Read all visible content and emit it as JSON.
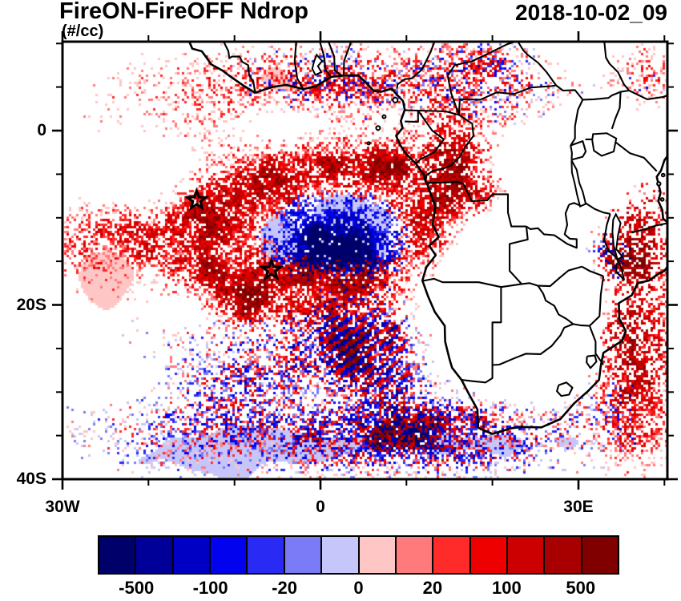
{
  "header": {
    "title": "FireON-FireOFF Ndrop",
    "units": "(#/cc)",
    "datetime": "2018-10-02_09"
  },
  "chart_data": {
    "type": "heatmap",
    "title": "FireON-FireOFF Ndrop",
    "units": "#/cc",
    "datetime": "2018-10-02_09",
    "description": "Difference in cloud droplet number concentration (FireON minus FireOFF) over the southeast Atlantic and southern Africa, shown as a red/blue diverging pixel field over a coastline map.",
    "extent": {
      "lon_min": -30,
      "lon_max": 40.3,
      "lat_min": -40.2,
      "lat_max": 10.2
    },
    "x_ticks": [
      {
        "lon": -30,
        "label": "30W"
      },
      {
        "lon": 0,
        "label": "0"
      },
      {
        "lon": 30,
        "label": "30E"
      }
    ],
    "y_ticks": [
      {
        "lat": 0,
        "label": "0"
      },
      {
        "lat": -20,
        "label": "20S"
      },
      {
        "lat": -40,
        "label": "40S"
      }
    ],
    "minor_tick_step_lon": 10,
    "minor_tick_step_lat": 5,
    "grid": false,
    "line_color": "#000000",
    "background_color": "#ffffff",
    "colorbar": {
      "orientation": "horizontal",
      "levels": [
        -500,
        -200,
        -100,
        -50,
        -20,
        -10,
        0,
        10,
        20,
        50,
        100,
        200,
        500
      ],
      "labels": [
        "-500",
        "-100",
        "-20",
        "0",
        "20",
        "100",
        "500"
      ],
      "labeled_level_indices": [
        0,
        2,
        4,
        6,
        8,
        10,
        12
      ],
      "colors": [
        "#00006B",
        "#000099",
        "#0000C4",
        "#0202EE",
        "#2A2AF5",
        "#7B7BF7",
        "#C6C6FA",
        "#FFC6C6",
        "#FF7B7B",
        "#FF2A2A",
        "#EE0000",
        "#CC0000",
        "#A80000",
        "#800000"
      ]
    },
    "markers": [
      {
        "name": "ascension-island-star",
        "lon": -14.4,
        "lat": -8.0
      },
      {
        "name": "st-helena-star",
        "lon": -5.7,
        "lat": -16.0
      }
    ],
    "field_summary": "Positive (red) differences dominate the biomass-burning outflow over the SE Atlantic and central/eastern Africa; a blue negative lens sits offshore of Angola near 0E,12S; mixed red/blue small-scale noise with diagonal wave bands covers the Southern Ocean sector south of 20S.",
    "field_regions": [
      {
        "lon": -13.1,
        "lat": 2.1,
        "rlon": 18.5,
        "rlat": 8.3,
        "amp": 0.38,
        "sign": 0.75
      },
      {
        "lon": -23.3,
        "lat": -12.6,
        "rlon": 10.7,
        "rlat": 5.5,
        "amp": 0.75,
        "sign": 0.95
      },
      {
        "lon": -9.4,
        "lat": -7.1,
        "rlon": 7.0,
        "rlat": 4.1,
        "amp": 0.85,
        "sign": 1
      },
      {
        "lon": -13.6,
        "lat": -13.1,
        "rlon": 5.1,
        "rlat": 6.9,
        "amp": 0.8,
        "sign": 1
      },
      {
        "lon": -8.5,
        "lat": -18.6,
        "rlon": 6.0,
        "rlat": 4.1,
        "amp": 0.8,
        "sign": 1
      },
      {
        "lon": -1.1,
        "lat": -3.9,
        "rlon": 8.8,
        "rlat": 3.5,
        "amp": 0.85,
        "sign": 1
      },
      {
        "lon": 7.3,
        "lat": -3.9,
        "rlon": 6.0,
        "rlat": 3.2,
        "amp": 0.75,
        "sign": 1
      },
      {
        "lon": 12.8,
        "lat": -8.9,
        "rlon": 5.1,
        "rlat": 5.1,
        "amp": 0.68,
        "sign": 1
      },
      {
        "lon": 14.7,
        "lat": -14.0,
        "rlon": 5.1,
        "rlat": 4.1,
        "amp": 0.7,
        "sign": 1
      },
      {
        "lon": 1.7,
        "lat": -17.2,
        "rlon": 10.2,
        "rlat": 4.1,
        "amp": 0.75,
        "sign": 1
      },
      {
        "lon": 1.2,
        "lat": -12.2,
        "rlon": 9.7,
        "rlat": 6.0,
        "amp": 0.7,
        "sign": -0.85
      },
      {
        "lon": 2.6,
        "lat": -12.6,
        "rlon": 6.0,
        "rlat": 3.9,
        "amp": 0.8,
        "sign": -1
      },
      {
        "lon": 2.6,
        "lat": 5.8,
        "rlon": 16.2,
        "rlat": 4.4,
        "amp": 0.6,
        "sign": 0.35,
        "mode": "mixed"
      },
      {
        "lon": 15.2,
        "lat": -2.9,
        "rlon": 5.6,
        "rlat": 6.0,
        "amp": 0.7,
        "sign": 1,
        "deep": 0.15
      },
      {
        "lon": 19.3,
        "lat": -7.6,
        "rlon": 4.2,
        "rlat": 3.7,
        "amp": 0.55,
        "sign": 1
      },
      {
        "lon": 22.6,
        "lat": 3.5,
        "rlon": 10.7,
        "rlat": 5.1,
        "amp": 0.45,
        "sign": 0.35,
        "mode": "mixed"
      },
      {
        "lon": 17.5,
        "lat": 8.1,
        "rlon": 7.4,
        "rlat": 2.8,
        "amp": 0.5,
        "sign": 0.5,
        "mode": "mixed"
      },
      {
        "lon": 37.9,
        "lat": 6.7,
        "rlon": 4.2,
        "rlat": 4.2,
        "amp": 0.5,
        "sign": 0.7,
        "mode": "mixed"
      },
      {
        "lon": 36.9,
        "lat": -12.6,
        "rlon": 5.1,
        "rlat": 8.8,
        "amp": 0.65,
        "sign": 1,
        "deep": 0.35
      },
      {
        "lon": 35.6,
        "lat": -24.1,
        "rlon": 7.0,
        "rlat": 6.0,
        "amp": 0.7,
        "sign": 1,
        "deep": 0.3
      },
      {
        "lon": -8.5,
        "lat": -26.9,
        "rlon": 22.2,
        "rlat": 7.8,
        "amp": 0.5,
        "sign": -0.05,
        "mode": "mixed"
      },
      {
        "lon": -14.1,
        "lat": -35.2,
        "rlon": 17.2,
        "rlat": 5.5,
        "amp": 0.45,
        "sign": -0.15,
        "mode": "mixed"
      },
      {
        "lon": 14.7,
        "lat": -35.2,
        "rlon": 18.5,
        "rlat": 5.5,
        "amp": 0.55,
        "sign": 0,
        "mode": "mixed"
      },
      {
        "lon": 28.1,
        "lat": -30.6,
        "rlon": 12.1,
        "rlat": 6.9,
        "amp": 0.45,
        "sign": 0.1,
        "mode": "mixed"
      },
      {
        "lon": 4.9,
        "lat": -24.6,
        "rlon": 8.8,
        "rlat": 5.3,
        "amp": 0.55,
        "sign": 0,
        "mode": "stripe"
      },
      {
        "lon": 8.2,
        "lat": -33.4,
        "rlon": 13.9,
        "rlat": 6.0,
        "amp": 0.6,
        "sign": 0,
        "mode": "mixed"
      },
      {
        "lon": 36.9,
        "lat": -32.9,
        "rlon": 5.1,
        "rlat": 6.9,
        "amp": 0.55,
        "sign": 0.8
      },
      {
        "lon": 33.7,
        "lat": -14.0,
        "rlon": 5.1,
        "rlat": 4.1,
        "amp": 0.4,
        "sign": -0.3,
        "mode": "mixed"
      },
      {
        "lon": -20.5,
        "lat": -4.3,
        "rlon": 7.9,
        "rlat": 4.1,
        "amp": -0.45
      },
      {
        "lon": -5.2,
        "lat": 0.7,
        "rlon": 6.5,
        "rlat": 3.2,
        "amp": -0.4
      },
      {
        "lon": 24.0,
        "lat": -24.6,
        "rlon": 10.7,
        "rlat": 8.8,
        "amp": -1.1
      },
      {
        "lon": 19.3,
        "lat": -14.5,
        "rlon": 8.3,
        "rlat": 6.0,
        "amp": -0.9
      },
      {
        "lon": 27.7,
        "lat": -4.3,
        "rlon": 7.4,
        "rlat": 6.5,
        "amp": -0.7
      },
      {
        "lon": 1.7,
        "lat": -30.6,
        "rlon": 6.5,
        "rlat": 2.8,
        "amp": -0.45
      },
      {
        "lon": -22.4,
        "lat": -28.3,
        "rlon": 6.5,
        "rlat": 4.1,
        "amp": -0.35
      },
      {
        "lon": -15.0,
        "lat": -20.5,
        "rlon": 5.1,
        "rlat": 3.2,
        "amp": -0.35
      },
      {
        "lon": 1.2,
        "lat": -12.2,
        "rlon": 11.1,
        "rlat": 7.4,
        "amp": 0.55,
        "sign": -1,
        "mode": "soft"
      },
      {
        "lon": -10.4,
        "lat": -36.6,
        "rlon": 19.5,
        "rlat": 4.6,
        "amp": 0.5,
        "sign": -1,
        "mode": "soft"
      },
      {
        "lon": 23.1,
        "lat": -36.1,
        "rlon": 15.8,
        "rlat": 4.1,
        "amp": 0.35,
        "sign": -1,
        "mode": "soft"
      },
      {
        "lon": -0.2,
        "lat": -15.4,
        "rlon": 15.8,
        "rlat": 10.1,
        "amp": 0.35,
        "sign": 1,
        "mode": "soft"
      },
      {
        "lon": -24.3,
        "lat": -16.8,
        "rlon": 6.5,
        "rlat": 5.5,
        "amp": 0.45,
        "sign": 1,
        "mode": "soft"
      },
      {
        "lon": 26.7,
        "lat": -38.9,
        "rlon": 14.8,
        "rlat": 2.8,
        "amp": 0.3,
        "sign": 1,
        "mode": "soft"
      },
      {
        "lon": 2.6,
        "lat": 6.3,
        "rlon": 16.7,
        "rlat": 4.1,
        "amp": 0.4,
        "sign": 1,
        "mode": "soft"
      },
      {
        "lon": 36.5,
        "lat": -8.0,
        "rlon": 5.1,
        "rlat": 5.5,
        "amp": 0.3,
        "sign": 1,
        "mode": "soft"
      },
      {
        "lon": -26.1,
        "lat": -38.4,
        "rlon": 7.4,
        "rlat": 2.8,
        "amp": 0.3,
        "sign": 1,
        "mode": "soft"
      }
    ]
  }
}
